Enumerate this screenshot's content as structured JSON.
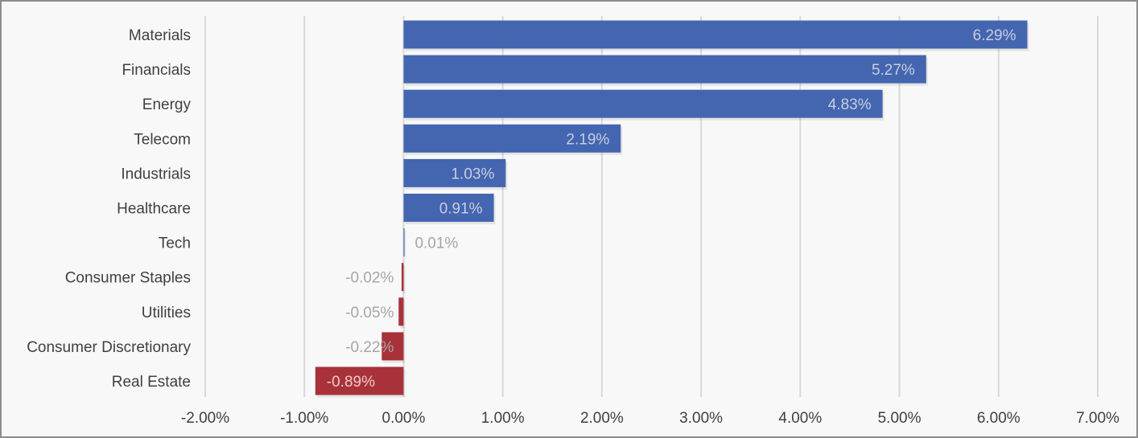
{
  "chart_data": {
    "type": "bar",
    "orientation": "horizontal",
    "categories": [
      "Materials",
      "Financials",
      "Energy",
      "Telecom",
      "Industrials",
      "Healthcare",
      "Tech",
      "Consumer Staples",
      "Utilities",
      "Consumer Discretionary",
      "Real Estate"
    ],
    "values": [
      6.29,
      5.27,
      4.83,
      2.19,
      1.03,
      0.91,
      0.01,
      -0.02,
      -0.05,
      -0.22,
      -0.89
    ],
    "value_labels": [
      "6.29%",
      "5.27%",
      "4.83%",
      "2.19%",
      "1.03%",
      "0.91%",
      "0.01%",
      "-0.02%",
      "-0.05%",
      "-0.22%",
      "-0.89%"
    ],
    "x_ticks": [
      -2,
      -1,
      0,
      1,
      2,
      3,
      4,
      5,
      6,
      7
    ],
    "x_tick_labels": [
      "-2.00%",
      "-1.00%",
      "0.00%",
      "1.00%",
      "2.00%",
      "3.00%",
      "4.00%",
      "5.00%",
      "6.00%",
      "7.00%"
    ],
    "xlim": [
      -2,
      7
    ],
    "grid": true,
    "legend": "none",
    "colors": {
      "positive": "#4466b0",
      "negative": "#a8323a",
      "label_on_positive_bar": "#c8cde0",
      "label_outside": "#a6a6a6",
      "label_on_negative_bar": "#f0c8c8",
      "gridline": "#d9d9d9",
      "background": "#f8f8f8"
    }
  }
}
